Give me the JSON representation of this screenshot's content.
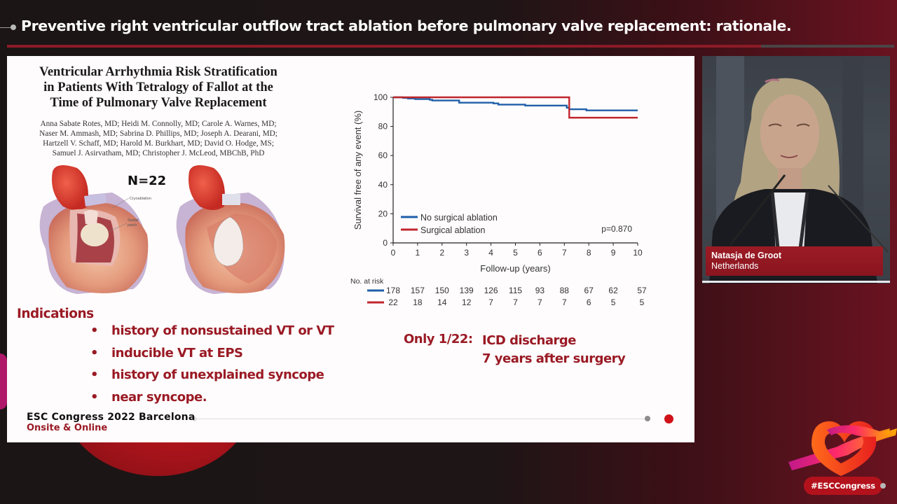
{
  "header": {
    "title": "Preventive right ventricular outflow tract ablation before pulmonary valve replacement: rationale.",
    "progress_percent": 85
  },
  "slide": {
    "paper": {
      "title_lines": [
        "Ventricular Arrhythmia Risk Stratification",
        "in Patients With Tetralogy of Fallot at the",
        "Time of Pulmonary Valve Replacement"
      ],
      "author_lines": [
        "Anna Sabate Rotes, MD; Heidi M. Connolly, MD; Carole A. Warnes, MD;",
        "Naser M. Ammash, MD; Sabrina D. Phillips, MD; Joseph A. Dearani, MD;",
        "Hartzell V. Schaff, MD; Harold M. Burkhart, MD; David O. Hodge, MS;",
        "Samuel J. Asirvatham, MD; Christopher J. McLeod, MBChB, PhD"
      ]
    },
    "illustration": {
      "n_label": "N=22",
      "labels": [
        "Cryoablation",
        "Septal patch"
      ]
    },
    "indications": {
      "title": "Indications",
      "items": [
        "history of nonsustained VT or VT",
        "inducible VT at EPS",
        "history of unexplained syncope",
        "near syncope."
      ]
    },
    "note": {
      "label": "Only 1/22:",
      "lines": [
        "ICD discharge",
        "7 years after surgery"
      ]
    },
    "footer": {
      "brand": "ESC Congress 2022 Barcelona",
      "subtitle": "Onsite & Online"
    }
  },
  "chart_data": {
    "type": "line",
    "subtype": "kaplan-meier",
    "title": "",
    "xlabel": "Follow-up (years)",
    "ylabel": "Survival free of any event (%)",
    "xlim": [
      0,
      10
    ],
    "ylim": [
      0,
      100
    ],
    "xticks": [
      0,
      1,
      2,
      3,
      4,
      5,
      6,
      7,
      8,
      9,
      10
    ],
    "yticks": [
      0,
      20,
      40,
      60,
      80,
      100
    ],
    "grid": false,
    "legend_position": "lower-left",
    "annotation": "p=0.870",
    "series": [
      {
        "name": "No surgical ablation",
        "color": "#1f5fa8",
        "points": [
          [
            0,
            100
          ],
          [
            0.4,
            99.6
          ],
          [
            0.6,
            99.2
          ],
          [
            0.9,
            98.8
          ],
          [
            1.5,
            98.3
          ],
          [
            1.6,
            97.8
          ],
          [
            2.6,
            97.8
          ],
          [
            2.7,
            96.3
          ],
          [
            3.9,
            96.3
          ],
          [
            4.1,
            95.8
          ],
          [
            4.3,
            95.0
          ],
          [
            5.3,
            95.0
          ],
          [
            5.4,
            94.3
          ],
          [
            7.0,
            94.3
          ],
          [
            7.1,
            92.8
          ],
          [
            7.2,
            91.8
          ],
          [
            7.8,
            91.8
          ],
          [
            7.9,
            91.0
          ],
          [
            10,
            91.0
          ]
        ]
      },
      {
        "name": "Surgical ablation",
        "color": "#c0262d",
        "points": [
          [
            0,
            100
          ],
          [
            7.2,
            100
          ],
          [
            7.2,
            86
          ],
          [
            10,
            86
          ]
        ]
      }
    ],
    "at_risk": {
      "label": "No. at risk",
      "rows": [
        {
          "series": "No surgical ablation",
          "values": [
            178,
            157,
            150,
            139,
            126,
            115,
            93,
            88,
            67,
            62,
            57
          ]
        },
        {
          "series": "Surgical ablation",
          "values": [
            22,
            18,
            14,
            12,
            7,
            7,
            7,
            7,
            6,
            5,
            5
          ]
        }
      ]
    }
  },
  "speaker": {
    "name": "Natasja de Groot",
    "country": "Netherlands"
  },
  "branding": {
    "hashtag": "#ESCCongress"
  }
}
